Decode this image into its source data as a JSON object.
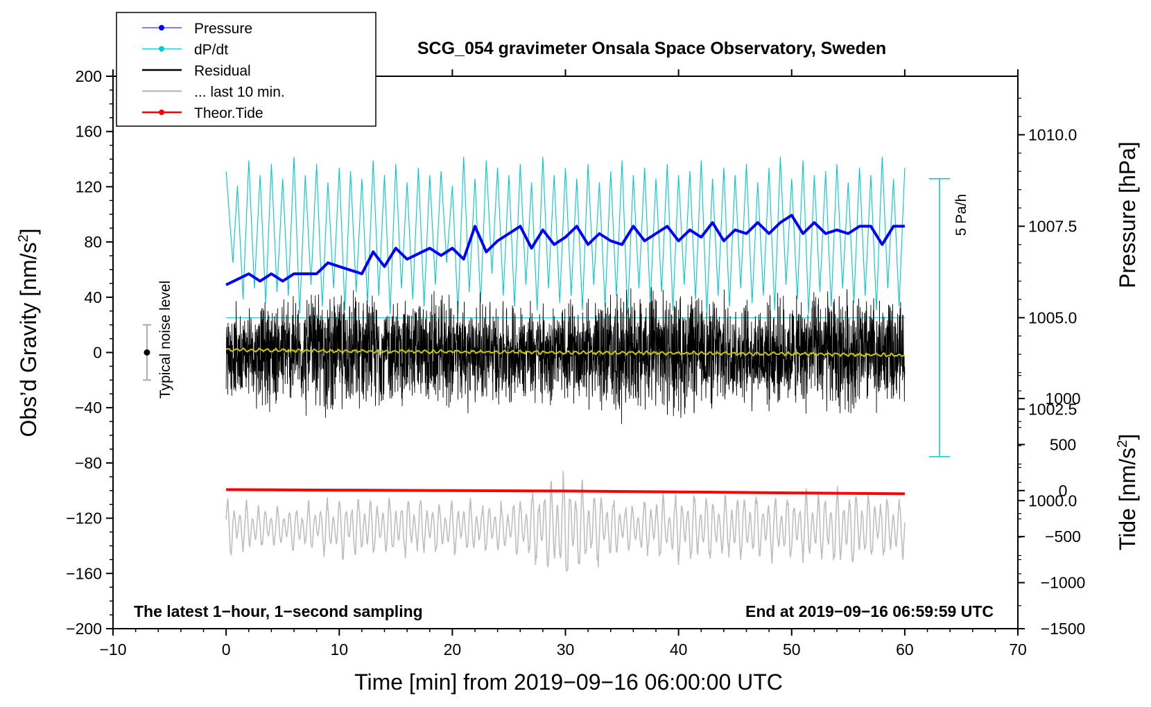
{
  "chart_data": {
    "type": "line",
    "title": "SCG_054 gravimeter Onsala Space Observatory, Sweden",
    "xlabel": "Time [min] from 2019−09−16 06:00:00 UTC",
    "ylabel_left": "Obs’d Gravity [nm/s",
    "ylabel_left_sup": "2",
    "ylabel_left_close": "]",
    "ylabel_right_pressure": "Pressure [hPa]",
    "ylabel_right_tide": "Tide [nm/s",
    "ylabel_right_tide_sup": "2",
    "ylabel_right_tide_close": "]",
    "xlim": [
      -10,
      70
    ],
    "ylim": [
      -200,
      200
    ],
    "pressure_lim": [
      996.5,
      1011.6
    ],
    "tide_lim": [
      -1500,
      4500
    ],
    "x_ticks": [
      -10,
      0,
      10,
      20,
      30,
      40,
      50,
      60,
      70
    ],
    "x_tick_labels": [
      "−10",
      "0",
      "10",
      "20",
      "30",
      "40",
      "50",
      "60",
      "70"
    ],
    "y_ticks": [
      -200,
      -160,
      -120,
      -80,
      -40,
      0,
      40,
      80,
      120,
      160,
      200
    ],
    "y_tick_labels": [
      "−200",
      "−160",
      "−120",
      "−80",
      "−40",
      "0",
      "40",
      "80",
      "120",
      "160",
      "200"
    ],
    "pressure_ticks": [
      1000.0,
      1002.5,
      1005.0,
      1007.5,
      1010.0
    ],
    "pressure_tick_labels": [
      "1000.0",
      "1002.5",
      "1005.0",
      "1007.5",
      "1010.0"
    ],
    "tide_ticks": [
      -1500,
      -1000,
      -500,
      0,
      500,
      1000
    ],
    "tide_tick_labels": [
      "−1500",
      "−1000",
      "−500",
      "0",
      "500",
      "1000"
    ],
    "legend": [
      {
        "label": "Pressure",
        "color": "#0000ff",
        "marker": true
      },
      {
        "label": "dP/dt",
        "color": "#00c8c8",
        "marker": true
      },
      {
        "label": "Residual",
        "color": "#000000",
        "marker": false
      },
      {
        "label": "... last 10 min.",
        "color": "#bebebe",
        "marker": false
      },
      {
        "label": "Theor.Tide",
        "color": "#ff0000",
        "marker": true
      }
    ],
    "annotations": {
      "noise_label": "Typical noise level",
      "noise_level": 20,
      "noise_x": -7,
      "dpdt_scale_label": "5 Pa/h",
      "left_note": "The latest 1−hour, 1−second sampling",
      "right_note": "End at 2019−09−16 06:59:59 UTC"
    },
    "series": [
      {
        "name": "Pressure",
        "axis": "pressure",
        "color": "#0000ff",
        "x": [
          0,
          2,
          3,
          4,
          5,
          6,
          8,
          9,
          10,
          12,
          13,
          14,
          15,
          16,
          18,
          19,
          20,
          21,
          22,
          23,
          24,
          25,
          26,
          27,
          28,
          29,
          30,
          31,
          32,
          33,
          34,
          35,
          36,
          37,
          38,
          39,
          40,
          41,
          42,
          43,
          44,
          45,
          46,
          47,
          48,
          49,
          50,
          51,
          52,
          53,
          54,
          55,
          56,
          57,
          58,
          59,
          60
        ],
        "values": [
          1005.9,
          1006.2,
          1006.0,
          1006.2,
          1006.0,
          1006.2,
          1006.2,
          1006.5,
          1006.4,
          1006.2,
          1006.8,
          1006.4,
          1006.9,
          1006.6,
          1006.9,
          1006.7,
          1006.9,
          1006.6,
          1007.5,
          1006.8,
          1007.1,
          1007.3,
          1007.5,
          1006.9,
          1007.4,
          1007.0,
          1007.2,
          1007.5,
          1007.0,
          1007.3,
          1007.1,
          1007.0,
          1007.5,
          1007.1,
          1007.3,
          1007.5,
          1007.1,
          1007.4,
          1007.2,
          1007.6,
          1007.1,
          1007.4,
          1007.3,
          1007.6,
          1007.3,
          1007.6,
          1007.8,
          1007.3,
          1007.6,
          1007.3,
          1007.4,
          1007.3,
          1007.5,
          1007.5,
          1007.0,
          1007.5,
          1007.5
        ]
      },
      {
        "name": "dP/dt",
        "axis": "dpdt",
        "color": "#00c8c8",
        "center_pressure": 1005.0,
        "span_pressure": [
          1001.2,
          1008.8
        ],
        "x": [
          0,
          0.6,
          1,
          1.5,
          2,
          2.5,
          3,
          3.5,
          4,
          4.5,
          5,
          5.5,
          6,
          6.5,
          7,
          7.5,
          8,
          8.5,
          9,
          9.5,
          10,
          10.5,
          11,
          11.5,
          12,
          12.5,
          13,
          13.5,
          14,
          14.5,
          15,
          15.5,
          16,
          16.5,
          17,
          17.5,
          18,
          18.5,
          19,
          19.5,
          20,
          20.5,
          21,
          21.5,
          22,
          22.5,
          23,
          23.5,
          24,
          24.5,
          25,
          25.5,
          26,
          26.5,
          27,
          27.5,
          28,
          28.5,
          29,
          29.5,
          30,
          30.5,
          31,
          31.5,
          32,
          32.5,
          33,
          33.5,
          34,
          34.5,
          35,
          35.5,
          36,
          36.5,
          37,
          37.5,
          38,
          38.5,
          39,
          39.5,
          40,
          40.5,
          41,
          41.5,
          42,
          42.5,
          43,
          43.5,
          44,
          44.5,
          45,
          45.5,
          46,
          46.5,
          47,
          47.5,
          48,
          48.5,
          49,
          49.5,
          50,
          50.5,
          51,
          51.5,
          52,
          52.5,
          53,
          53.5,
          54,
          54.5,
          55,
          55.5,
          56,
          56.5,
          57,
          57.5,
          58,
          58.5,
          59,
          59.5,
          60
        ],
        "values": [
          1009.0,
          1006.5,
          1008.6,
          1005.5,
          1009.3,
          1005.8,
          1008.9,
          1005.4,
          1009.2,
          1005.7,
          1008.8,
          1005.6,
          1009.4,
          1005.1,
          1008.9,
          1005.9,
          1009.2,
          1005.3,
          1008.7,
          1005.8,
          1009.1,
          1005.2,
          1009.0,
          1005.7,
          1008.8,
          1005.4,
          1009.3,
          1005.6,
          1008.9,
          1005.1,
          1009.2,
          1005.8,
          1008.7,
          1005.5,
          1009.1,
          1005.3,
          1008.9,
          1005.9,
          1009.0,
          1006.5,
          1008.6,
          1005.1,
          1009.4,
          1005.7,
          1008.8,
          1005.4,
          1009.3,
          1006.2,
          1009.1,
          1005.6,
          1008.9,
          1005.3,
          1009.2,
          1005.9,
          1008.7,
          1005.2,
          1009.4,
          1005.8,
          1008.9,
          1005.4,
          1009.1,
          1005.6,
          1008.8,
          1005.2,
          1009.2,
          1005.9,
          1008.7,
          1005.3,
          1009.0,
          1005.6,
          1009.3,
          1005.1,
          1008.9,
          1005.8,
          1009.1,
          1005.4,
          1008.8,
          1005.7,
          1009.2,
          1005.2,
          1008.9,
          1005.9,
          1009.0,
          1005.5,
          1009.3,
          1005.1,
          1008.8,
          1005.6,
          1009.1,
          1005.3,
          1008.9,
          1005.8,
          1009.2,
          1005.4,
          1008.7,
          1005.6,
          1009.1,
          1005.2,
          1009.4,
          1005.9,
          1008.8,
          1005.5,
          1009.3,
          1005.1,
          1008.9,
          1005.7,
          1009.0,
          1005.3,
          1009.2,
          1005.8,
          1008.7,
          1005.4,
          1009.1,
          1005.6,
          1008.9,
          1005.2,
          1009.4,
          1005.8,
          1008.8,
          1005.3,
          1009.1
        ]
      },
      {
        "name": "Residual",
        "axis": "gravity",
        "color": "#000000",
        "x_range": [
          0,
          60
        ],
        "envelope_x": [
          0,
          5,
          10,
          15,
          20,
          25,
          30,
          35,
          40,
          45,
          50,
          55,
          60
        ],
        "envelope_amplitude": [
          32,
          45,
          48,
          42,
          45,
          40,
          38,
          52,
          48,
          42,
          44,
          50,
          40
        ]
      },
      {
        "name": "... last 10 min.",
        "axis": "tide",
        "color": "#bebebe",
        "x_range": [
          0,
          60
        ],
        "center": -400,
        "envelope_x": [
          0,
          5,
          10,
          15,
          20,
          25,
          30,
          35,
          40,
          45,
          50,
          55,
          60
        ],
        "envelope_amplitude": [
          350,
          250,
          380,
          380,
          330,
          320,
          700,
          320,
          450,
          420,
          420,
          520,
          380
        ]
      },
      {
        "name": "Residual smooth",
        "axis": "gravity",
        "color": "#c8c800",
        "x": [
          0,
          10,
          20,
          30,
          40,
          50,
          60
        ],
        "values": [
          2,
          1,
          0.5,
          0,
          -0.5,
          -1,
          -2
        ]
      },
      {
        "name": "Theor.Tide",
        "axis": "tide",
        "color": "#ff0000",
        "x": [
          0,
          10,
          20,
          30,
          40,
          50,
          60
        ],
        "values": [
          10,
          5,
          0,
          -5,
          -15,
          -25,
          -35
        ]
      }
    ]
  }
}
